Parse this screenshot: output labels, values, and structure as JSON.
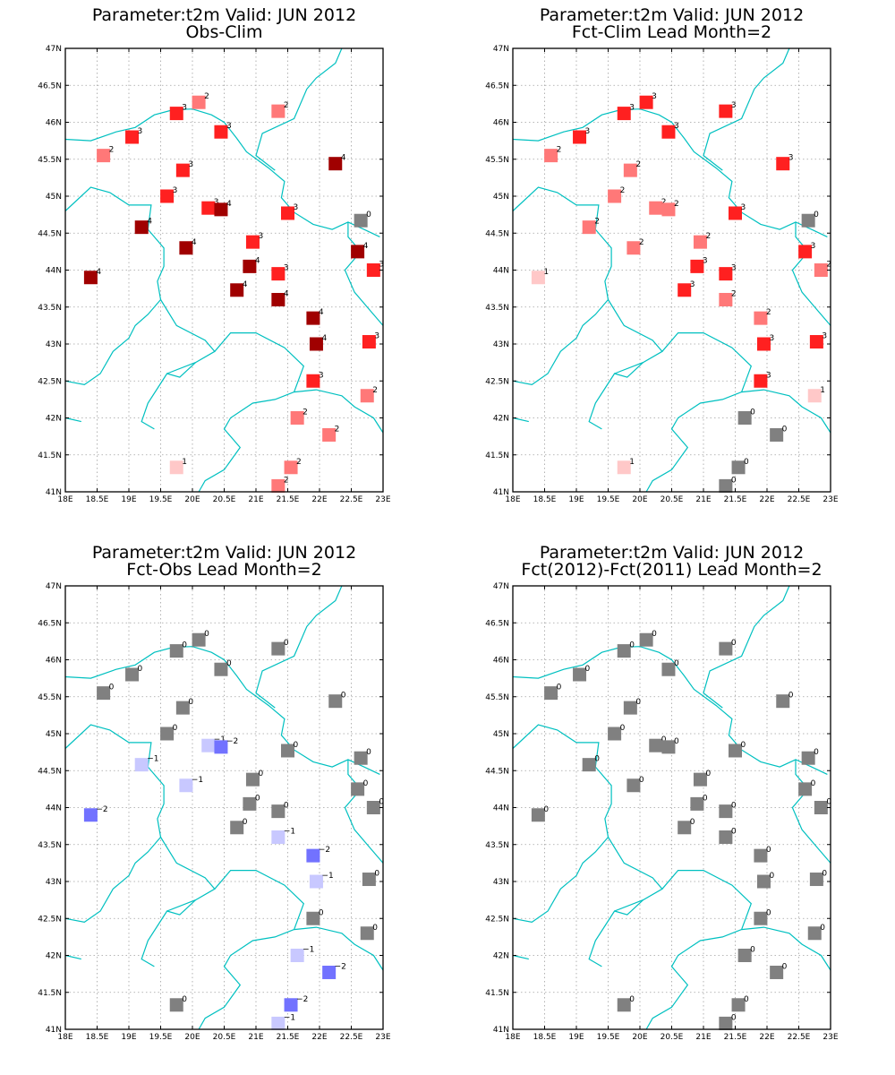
{
  "colors": {
    "border_line": "#00c0c0",
    "grid": "#a0a0a0",
    "value_colors": {
      "-2": "#7272ff",
      "-1": "#c8c8ff",
      "0": "#808080",
      "1": "#ffc8c8",
      "2": "#ff7878",
      "3": "#ff2020",
      "4": "#a00000"
    }
  },
  "axes": {
    "xlim": [
      18,
      23
    ],
    "ylim": [
      41,
      47
    ],
    "x_ticks": [
      "18E",
      "18.5E",
      "19E",
      "19.5E",
      "20E",
      "20.5E",
      "21E",
      "21.5E",
      "22E",
      "22.5E",
      "23E"
    ],
    "y_ticks": [
      "41N",
      "41.5N",
      "42N",
      "42.5N",
      "43N",
      "43.5N",
      "44N",
      "44.5N",
      "45N",
      "45.5N",
      "46N",
      "46.5N",
      "47N"
    ]
  },
  "stations": [
    {
      "lon": 18.4,
      "lat": 43.9
    },
    {
      "lon": 18.6,
      "lat": 45.55
    },
    {
      "lon": 19.05,
      "lat": 45.8
    },
    {
      "lon": 19.2,
      "lat": 44.58
    },
    {
      "lon": 19.6,
      "lat": 45.0
    },
    {
      "lon": 19.75,
      "lat": 46.12
    },
    {
      "lon": 19.75,
      "lat": 41.33
    },
    {
      "lon": 19.85,
      "lat": 45.35
    },
    {
      "lon": 19.9,
      "lat": 44.3
    },
    {
      "lon": 20.1,
      "lat": 46.27
    },
    {
      "lon": 20.25,
      "lat": 44.84
    },
    {
      "lon": 20.45,
      "lat": 44.82
    },
    {
      "lon": 20.45,
      "lat": 45.87
    },
    {
      "lon": 20.7,
      "lat": 43.73
    },
    {
      "lon": 20.9,
      "lat": 44.05
    },
    {
      "lon": 20.95,
      "lat": 44.38
    },
    {
      "lon": 21.35,
      "lat": 46.15
    },
    {
      "lon": 21.35,
      "lat": 43.95
    },
    {
      "lon": 21.35,
      "lat": 43.6
    },
    {
      "lon": 21.35,
      "lat": 41.08
    },
    {
      "lon": 21.5,
      "lat": 44.77
    },
    {
      "lon": 21.55,
      "lat": 41.33
    },
    {
      "lon": 21.65,
      "lat": 42.0
    },
    {
      "lon": 21.9,
      "lat": 43.35
    },
    {
      "lon": 21.9,
      "lat": 42.5
    },
    {
      "lon": 21.95,
      "lat": 43.0
    },
    {
      "lon": 22.15,
      "lat": 41.77
    },
    {
      "lon": 22.25,
      "lat": 45.44
    },
    {
      "lon": 22.6,
      "lat": 44.25
    },
    {
      "lon": 22.65,
      "lat": 44.67
    },
    {
      "lon": 22.75,
      "lat": 42.3
    },
    {
      "lon": 22.78,
      "lat": 43.03
    },
    {
      "lon": 22.85,
      "lat": 44.0
    }
  ],
  "panels": [
    {
      "title_line1": "Parameter:t2m Valid: JUN 2012",
      "title_line2": "Obs-Clim",
      "values": [
        4,
        2,
        3,
        4,
        3,
        3,
        1,
        3,
        4,
        2,
        3,
        4,
        3,
        4,
        4,
        3,
        2,
        3,
        4,
        2,
        3,
        2,
        2,
        4,
        3,
        4,
        2,
        4,
        4,
        0,
        2,
        3,
        3
      ]
    },
    {
      "title_line1": "Parameter:t2m Valid: JUN 2012",
      "title_line2": "Fct-Clim Lead Month=2",
      "values": [
        1,
        2,
        3,
        2,
        2,
        3,
        1,
        2,
        2,
        3,
        2,
        2,
        3,
        3,
        3,
        2,
        3,
        3,
        2,
        0,
        3,
        0,
        0,
        2,
        3,
        3,
        0,
        3,
        3,
        0,
        1,
        3,
        2
      ]
    },
    {
      "title_line1": "Parameter:t2m Valid: JUN 2012",
      "title_line2": "Fct-Obs Lead Month=2",
      "values": [
        -2,
        0,
        0,
        -1,
        0,
        0,
        0,
        0,
        -1,
        0,
        -1,
        -2,
        0,
        0,
        0,
        0,
        0,
        0,
        -1,
        -1,
        0,
        -2,
        -1,
        -2,
        0,
        -1,
        -2,
        0,
        0,
        0,
        0,
        0,
        0
      ]
    },
    {
      "title_line1": "Parameter:t2m Valid: JUN 2012",
      "title_line2": "Fct(2012)-Fct(2011) Lead Month=2",
      "values": [
        0,
        0,
        0,
        0,
        0,
        0,
        0,
        0,
        0,
        0,
        0,
        0,
        0,
        0,
        0,
        0,
        0,
        0,
        0,
        0,
        0,
        0,
        0,
        0,
        0,
        0,
        0,
        0,
        0,
        0,
        0,
        0,
        0
      ]
    }
  ]
}
